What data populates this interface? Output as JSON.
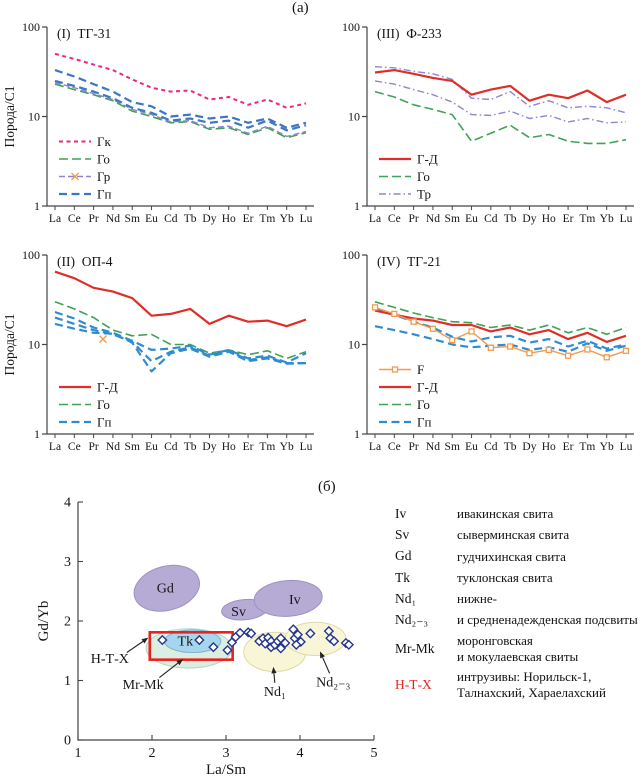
{
  "figure_labels": {
    "top": "(a)",
    "bottom": "(б)"
  },
  "colors": {
    "pink": "#E8297E",
    "green": "#3FA254",
    "purple": "#8F85D0",
    "blue": "#3C77C2",
    "light_blue": "#2F8CD3",
    "red": "#DF2E28",
    "orange": "#F49A4E",
    "axis": "#444444",
    "diamond": "#25368C",
    "rect_red": "#E8231E",
    "annotation_red": "#E8231E",
    "field_purple": "#B6ABD5",
    "field_purple_stroke": "#9C92C4",
    "field_yellow": "#F8F6D6",
    "field_yellow_stroke": "#DDD9A8",
    "field_blue": "#A5D6EE",
    "field_blue_stroke": "#7FB4D4",
    "field_teal": "#DCEDE2",
    "field_teal_stroke": "#B9D6C4"
  },
  "ree_categories": [
    "La",
    "Ce",
    "Pr",
    "Nd",
    "Sm",
    "Eu",
    "Cd",
    "Tb",
    "Dy",
    "Ho",
    "Er",
    "Tm",
    "Yb",
    "Lu"
  ],
  "chart_data": [
    {
      "type": "line",
      "yscale": "log",
      "panel_label": "(I)",
      "title": "ТГ-31",
      "ylabel": "Порода/С1",
      "ylim": [
        1,
        100
      ],
      "yticks": [
        100,
        10,
        1
      ],
      "series": [
        {
          "name": "Гк",
          "color": "pink",
          "dash": "4,3.5",
          "width": 2,
          "values": [
            50,
            44,
            38,
            33,
            26,
            21,
            19,
            19.5,
            15.5,
            16.5,
            13.5,
            15.5,
            12.5,
            14
          ]
        },
        {
          "name": "Го",
          "color": "green",
          "dash": "9,4",
          "width": 1.6,
          "values": [
            23,
            20,
            17.5,
            15,
            11.5,
            10,
            8.5,
            8.8,
            7.2,
            7.5,
            6.3,
            7.5,
            5.8,
            6.6
          ]
        },
        {
          "name": "Гр",
          "color": "purple",
          "dash": "6,3",
          "width": 1.4,
          "legend_marker": "x",
          "values": [
            24,
            21,
            18,
            15.5,
            12,
            10.5,
            8.7,
            9,
            7.5,
            7.8,
            6.5,
            7.8,
            6,
            6.8
          ]
        },
        {
          "name": "Гп",
          "color": "blue",
          "dash": "8,4.5",
          "width": 2.2,
          "values": [
            33,
            28,
            23,
            19,
            14.5,
            13,
            10,
            10.5,
            9.5,
            10,
            8.5,
            9.5,
            7.5,
            8.5
          ]
        },
        {
          "name": "Гп",
          "color": "blue",
          "dash": "8,4.5",
          "width": 2.2,
          "skip_legend": true,
          "values": [
            25,
            22,
            19,
            16,
            12.5,
            11,
            9,
            9.5,
            8.5,
            9,
            7.5,
            9,
            7,
            8
          ]
        }
      ]
    },
    {
      "type": "line",
      "yscale": "log",
      "panel_label": "(III)",
      "title": "Ф-233",
      "ylim": [
        1,
        100
      ],
      "yticks": [
        100,
        10,
        1
      ],
      "series": [
        {
          "name": "Тр",
          "color": "purple",
          "dash": "7,3,1.5,3",
          "width": 1.4,
          "values": [
            36,
            35,
            32,
            30,
            26,
            16,
            15.5,
            19,
            13,
            15,
            12.5,
            13,
            12.5,
            11
          ]
        },
        {
          "name": "Тр",
          "color": "purple",
          "dash": "7,3,1.5,3",
          "width": 1.4,
          "skip_legend": true,
          "values": [
            25,
            23,
            20,
            17.5,
            14.5,
            10.5,
            10.3,
            11.5,
            9.5,
            10.3,
            8.7,
            9.5,
            8.5,
            8.7
          ]
        },
        {
          "name": "Го",
          "color": "green",
          "dash": "9,4",
          "width": 1.6,
          "values": [
            19,
            16.5,
            13.5,
            12,
            10.5,
            5.3,
            6.5,
            8,
            5.8,
            6.3,
            5.3,
            5,
            5,
            5.5
          ]
        },
        {
          "name": "Г-Д",
          "color": "red",
          "dash": "",
          "width": 2.2,
          "values": [
            31,
            33,
            30,
            27,
            25,
            17.5,
            20,
            22,
            15,
            17.5,
            16,
            19.5,
            14.5,
            17.5
          ]
        }
      ],
      "legend_order": [
        "Г-Д",
        "Го",
        "Тр"
      ]
    },
    {
      "type": "line",
      "yscale": "log",
      "panel_label": "(II)",
      "title": "ОП-4",
      "ylabel": "Порода/С1",
      "ylim": [
        1,
        100
      ],
      "yticks": [
        100,
        10,
        1
      ],
      "extra_markers": [
        {
          "index": 3,
          "value": 11.5,
          "color": "orange",
          "shape": "x"
        }
      ],
      "series": [
        {
          "name": "Г-Д",
          "color": "red",
          "dash": "",
          "width": 2.2,
          "values": [
            65,
            55,
            43,
            39,
            33,
            21,
            22,
            25,
            17,
            21,
            18,
            18.5,
            16,
            19
          ]
        },
        {
          "name": "Го",
          "color": "green",
          "dash": "9,4",
          "width": 1.6,
          "values": [
            30,
            25,
            20,
            14.5,
            12.5,
            13,
            10,
            10,
            8,
            8.7,
            7.7,
            8.5,
            7,
            8.3
          ]
        },
        {
          "name": "Гп",
          "color": "light_blue",
          "dash": "8,4.5",
          "width": 2.2,
          "values": [
            23,
            19.5,
            15.5,
            13.5,
            11,
            8.7,
            9,
            9.7,
            7.7,
            8.7,
            7,
            7.5,
            6.3,
            8
          ]
        },
        {
          "name": "Гп",
          "color": "light_blue",
          "dash": "8,4.5",
          "width": 2.2,
          "skip_legend": true,
          "values": [
            20,
            17,
            14.5,
            13,
            10.7,
            6.5,
            8.3,
            9.3,
            7.5,
            8.5,
            6.7,
            7.2,
            6.2,
            6.2
          ]
        },
        {
          "name": "Гп",
          "color": "light_blue",
          "dash": "8,4.5",
          "width": 2.2,
          "skip_legend": true,
          "values": [
            17,
            15,
            13.5,
            13.2,
            10.5,
            5,
            8,
            9,
            7.3,
            8.3,
            6.5,
            7,
            6.1,
            6.2
          ]
        }
      ]
    },
    {
      "type": "line",
      "yscale": "log",
      "panel_label": "(IV)",
      "title": "ТГ-21",
      "ylim": [
        1,
        100
      ],
      "yticks": [
        100,
        10,
        1
      ],
      "series": [
        {
          "name": "Го",
          "color": "green",
          "dash": "9,4",
          "width": 1.6,
          "values": [
            30,
            26,
            22.5,
            20,
            18,
            17.5,
            15.5,
            16.5,
            14.5,
            16.5,
            13.5,
            15.5,
            13,
            15.5
          ]
        },
        {
          "name": "Гп",
          "color": "light_blue",
          "dash": "8,4.5",
          "width": 2.2,
          "values": [
            25,
            21.5,
            18,
            15.5,
            12.2,
            10.8,
            12,
            12.5,
            10.5,
            11.5,
            9.5,
            11,
            9,
            10
          ]
        },
        {
          "name": "Гп",
          "color": "light_blue",
          "dash": "8,4.5",
          "width": 2.2,
          "skip_legend": true,
          "values": [
            16,
            14.5,
            13,
            11.5,
            10,
            9.3,
            9.7,
            10,
            8.7,
            9.3,
            8.3,
            10.3,
            8.5,
            9.7
          ]
        },
        {
          "name": "Г-Д",
          "color": "red",
          "dash": "",
          "width": 2.2,
          "values": [
            24,
            21.5,
            19.5,
            18.5,
            16.5,
            16.5,
            14,
            15.5,
            13,
            14.5,
            11.5,
            13.5,
            10.7,
            12.5
          ]
        },
        {
          "name": "F",
          "color": "orange",
          "dash": "",
          "width": 1.4,
          "marker": "square",
          "values": [
            26,
            22,
            18,
            15,
            11.2,
            14,
            9.2,
            9.5,
            8,
            8.7,
            7.5,
            8.8,
            7.2,
            8.5
          ]
        }
      ],
      "legend_order": [
        "F",
        "Г-Д",
        "Го",
        "Гп"
      ]
    },
    {
      "type": "scatter",
      "xlabel": "La/Sm",
      "ylabel": "Gd/Yb",
      "xlim": [
        1,
        5
      ],
      "ylim": [
        0,
        4
      ],
      "xticks": [
        1,
        2,
        3,
        4,
        5
      ],
      "yticks": [
        0,
        1,
        2,
        3,
        4
      ],
      "fields": [
        {
          "label": "Gd",
          "cx": 2.2,
          "cy": 2.55,
          "rx": 0.45,
          "ry": 0.37,
          "rot": -15,
          "fill": "field_purple",
          "stroke": "field_purple_stroke",
          "lx": 2.18,
          "ly": 2.56
        },
        {
          "label": "Sv",
          "cx": 3.25,
          "cy": 2.19,
          "rx": 0.31,
          "ry": 0.17,
          "rot": -5,
          "fill": "field_purple",
          "stroke": "field_purple_stroke",
          "lx": 3.17,
          "ly": 2.17
        },
        {
          "label": "Iv",
          "cx": 3.84,
          "cy": 2.38,
          "rx": 0.46,
          "ry": 0.3,
          "rot": -4,
          "fill": "field_purple",
          "stroke": "field_purple_stroke",
          "lx": 3.93,
          "ly": 2.37
        },
        {
          "label": "Mr-Mk",
          "show_label": false,
          "cx": 2.5,
          "cy": 1.54,
          "rx": 0.58,
          "ry": 0.33,
          "rot": 0,
          "fill": "field_teal",
          "stroke": "field_teal_stroke"
        },
        {
          "label": "Nd1",
          "show_label": false,
          "cx": 3.66,
          "cy": 1.48,
          "rx": 0.42,
          "ry": 0.33,
          "rot": 0,
          "fill": "field_yellow",
          "stroke": "field_yellow_stroke"
        },
        {
          "label": "Nd2-3",
          "show_label": false,
          "cx": 4.21,
          "cy": 1.7,
          "rx": 0.41,
          "ry": 0.28,
          "rot": 0,
          "fill": "field_yellow",
          "stroke": "field_yellow_stroke"
        },
        {
          "label": "Tk",
          "cx": 2.55,
          "cy": 1.66,
          "rx": 0.38,
          "ry": 0.19,
          "rot": 0,
          "fill": "field_blue",
          "stroke": "field_blue_stroke",
          "lx": 2.45,
          "ly": 1.67
        }
      ],
      "rect": {
        "x1": 1.97,
        "y1": 1.35,
        "x2": 3.09,
        "y2": 1.81
      },
      "points": [
        [
          2.14,
          1.68
        ],
        [
          2.64,
          1.68
        ],
        [
          2.83,
          1.56
        ],
        [
          3.02,
          1.51
        ],
        [
          3.08,
          1.64
        ],
        [
          3.13,
          1.73
        ],
        [
          3.19,
          1.8
        ],
        [
          3.3,
          1.81
        ],
        [
          3.34,
          1.79
        ],
        [
          3.45,
          1.66
        ],
        [
          3.5,
          1.71
        ],
        [
          3.53,
          1.62
        ],
        [
          3.57,
          1.72
        ],
        [
          3.61,
          1.66
        ],
        [
          3.61,
          1.56
        ],
        [
          3.66,
          1.6
        ],
        [
          3.7,
          1.66
        ],
        [
          3.74,
          1.71
        ],
        [
          3.74,
          1.54
        ],
        [
          3.8,
          1.63
        ],
        [
          3.91,
          1.86
        ],
        [
          3.93,
          1.71
        ],
        [
          3.97,
          1.77
        ],
        [
          4.01,
          1.65
        ],
        [
          3.95,
          1.6
        ],
        [
          4.14,
          1.79
        ],
        [
          4.39,
          1.83
        ],
        [
          4.41,
          1.71
        ],
        [
          4.46,
          1.66
        ],
        [
          4.62,
          1.63
        ],
        [
          4.66,
          1.6
        ]
      ],
      "annotations": [
        {
          "text": "Н-Т-Х",
          "x": 1.43,
          "y": 1.38,
          "red": true,
          "arrow": [
            1.66,
            1.47,
            1.95,
            1.72
          ]
        },
        {
          "text": "Mr-Mk",
          "x": 1.88,
          "y": 0.94,
          "arrow": [
            2.1,
            1.05,
            2.42,
            1.36
          ]
        },
        {
          "text": "Nd₁",
          "x": 3.66,
          "y": 0.82,
          "arrow": [
            3.66,
            0.96,
            3.64,
            1.23
          ]
        },
        {
          "text": "Nd₂₋₃",
          "x": 4.45,
          "y": 0.98,
          "arrow": [
            4.4,
            1.12,
            4.27,
            1.49
          ]
        }
      ]
    }
  ],
  "legend_b": {
    "items": [
      {
        "key": "Iv",
        "text": "ивакинская свита"
      },
      {
        "key": "Sv",
        "text": "сыверминская свита"
      },
      {
        "key": "Gd",
        "text": "гудчихинская свита"
      },
      {
        "key": "Tk",
        "text": "туклонская свита"
      },
      {
        "key": "Nd₁",
        "text": "нижне-"
      },
      {
        "key": "Nd₂₋₃",
        "text": "и средненадежденская подсвиты"
      },
      {
        "key": "Mr-Mk",
        "text": "моронговская\nи мокулаевская свиты"
      },
      {
        "key": "Н-Т-Х",
        "red": true,
        "text": "интрузивы: Норильск-1,\nТалнахский, Хараелахский"
      }
    ]
  }
}
